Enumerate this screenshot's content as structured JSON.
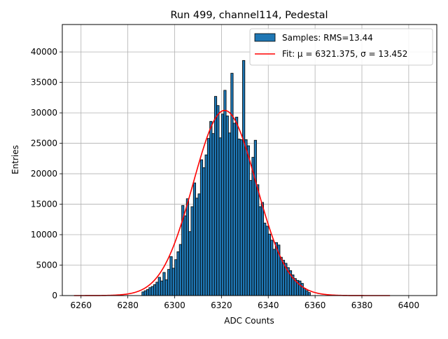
{
  "chart_data": {
    "type": "bar",
    "title": "Run 499, channel114, Pedestal",
    "xlabel": "ADC Counts",
    "ylabel": "Entries",
    "xlim": [
      6252,
      6412
    ],
    "ylim": [
      0,
      44500
    ],
    "grid": true,
    "legend_position": "top-right",
    "bin_width": 1,
    "xticks": [
      6260,
      6280,
      6300,
      6320,
      6340,
      6360,
      6380,
      6400
    ],
    "yticks": [
      0,
      5000,
      10000,
      15000,
      20000,
      25000,
      30000,
      35000,
      40000
    ],
    "histogram": {
      "name": "Samples: RMS=13.44",
      "color": "#1f77b4",
      "edge_color": "#000000",
      "bins": [
        {
          "x": 6286,
          "y": 600
        },
        {
          "x": 6287,
          "y": 800
        },
        {
          "x": 6288,
          "y": 1000
        },
        {
          "x": 6289,
          "y": 1300
        },
        {
          "x": 6290,
          "y": 1500
        },
        {
          "x": 6291,
          "y": 1800
        },
        {
          "x": 6292,
          "y": 2200
        },
        {
          "x": 6293,
          "y": 3000
        },
        {
          "x": 6294,
          "y": 2400
        },
        {
          "x": 6295,
          "y": 3800
        },
        {
          "x": 6296,
          "y": 2600
        },
        {
          "x": 6297,
          "y": 4300
        },
        {
          "x": 6298,
          "y": 6400
        },
        {
          "x": 6299,
          "y": 4500
        },
        {
          "x": 6300,
          "y": 5900
        },
        {
          "x": 6301,
          "y": 7200
        },
        {
          "x": 6302,
          "y": 8400
        },
        {
          "x": 6303,
          "y": 14800
        },
        {
          "x": 6304,
          "y": 13100
        },
        {
          "x": 6305,
          "y": 15900
        },
        {
          "x": 6306,
          "y": 10500
        },
        {
          "x": 6307,
          "y": 14600
        },
        {
          "x": 6308,
          "y": 18500
        },
        {
          "x": 6309,
          "y": 16000
        },
        {
          "x": 6310,
          "y": 16700
        },
        {
          "x": 6311,
          "y": 22300
        },
        {
          "x": 6312,
          "y": 21000
        },
        {
          "x": 6313,
          "y": 23100
        },
        {
          "x": 6314,
          "y": 25800
        },
        {
          "x": 6315,
          "y": 28600
        },
        {
          "x": 6316,
          "y": 26600
        },
        {
          "x": 6317,
          "y": 32700
        },
        {
          "x": 6318,
          "y": 31200
        },
        {
          "x": 6319,
          "y": 25900
        },
        {
          "x": 6320,
          "y": 29800
        },
        {
          "x": 6321,
          "y": 33700
        },
        {
          "x": 6322,
          "y": 29500
        },
        {
          "x": 6323,
          "y": 26700
        },
        {
          "x": 6324,
          "y": 36500
        },
        {
          "x": 6325,
          "y": 28300
        },
        {
          "x": 6326,
          "y": 29300
        },
        {
          "x": 6327,
          "y": 25700
        },
        {
          "x": 6328,
          "y": 25600
        },
        {
          "x": 6329,
          "y": 38600
        },
        {
          "x": 6330,
          "y": 25600
        },
        {
          "x": 6331,
          "y": 24600
        },
        {
          "x": 6332,
          "y": 18900
        },
        {
          "x": 6333,
          "y": 22700
        },
        {
          "x": 6334,
          "y": 25500
        },
        {
          "x": 6335,
          "y": 18200
        },
        {
          "x": 6336,
          "y": 14600
        },
        {
          "x": 6337,
          "y": 15300
        },
        {
          "x": 6338,
          "y": 11900
        },
        {
          "x": 6339,
          "y": 11400
        },
        {
          "x": 6340,
          "y": 10100
        },
        {
          "x": 6341,
          "y": 9100
        },
        {
          "x": 6342,
          "y": 7600
        },
        {
          "x": 6343,
          "y": 8700
        },
        {
          "x": 6344,
          "y": 8300
        },
        {
          "x": 6345,
          "y": 6300
        },
        {
          "x": 6346,
          "y": 5800
        },
        {
          "x": 6347,
          "y": 5300
        },
        {
          "x": 6348,
          "y": 4600
        },
        {
          "x": 6349,
          "y": 4100
        },
        {
          "x": 6350,
          "y": 3400
        },
        {
          "x": 6351,
          "y": 2800
        },
        {
          "x": 6352,
          "y": 2500
        },
        {
          "x": 6353,
          "y": 2400
        },
        {
          "x": 6354,
          "y": 2000
        },
        {
          "x": 6355,
          "y": 1200
        },
        {
          "x": 6356,
          "y": 800
        },
        {
          "x": 6357,
          "y": 500
        }
      ]
    },
    "fit": {
      "name": "Fit: μ = 6321.375, σ = 13.452",
      "color": "#ff0000",
      "mu": 6321.375,
      "sigma": 13.452,
      "amplitude": 30400,
      "x_range": [
        6257,
        6392
      ]
    }
  }
}
